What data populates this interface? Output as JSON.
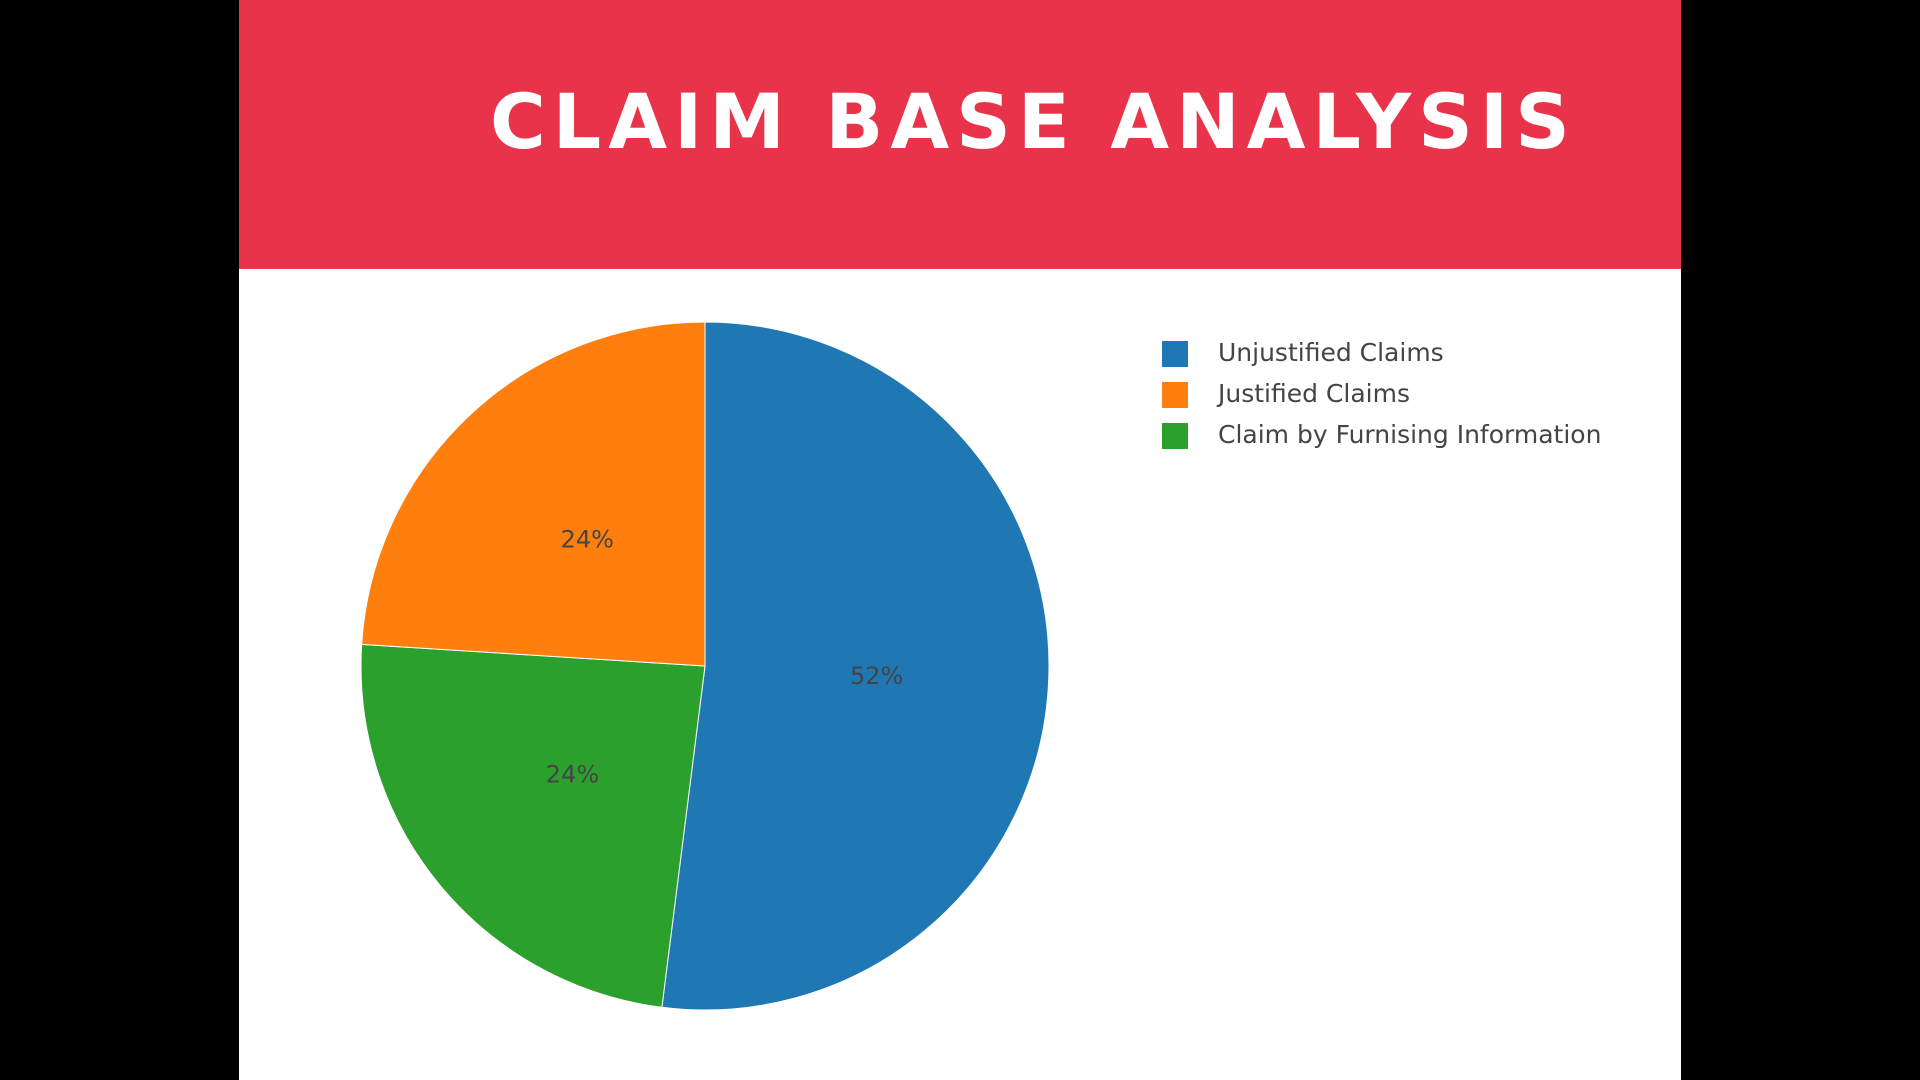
{
  "slide": {
    "title": "CLAIM BASE ANALYSIS",
    "banner_color": "#e8334a"
  },
  "chart_data": {
    "type": "pie",
    "title": "",
    "start_angle_deg": 0,
    "direction": "clockwise",
    "legend_placement": "top-right",
    "slices": [
      {
        "name": "Unjustified Claims",
        "value": 52,
        "label": "52%",
        "color": "#1f77b4"
      },
      {
        "name": "Claim by Furnising Information",
        "value": 24,
        "label": "24%",
        "color": "#2ca02c"
      },
      {
        "name": "Justified Claims",
        "value": 24,
        "label": "24%",
        "color": "#ff7f0e"
      }
    ],
    "legend": [
      {
        "name": "Unjustified Claims",
        "color": "#1f77b4"
      },
      {
        "name": "Justified Claims",
        "color": "#ff7f0e"
      },
      {
        "name": "Claim by Furnising Information",
        "color": "#2ca02c"
      }
    ]
  }
}
